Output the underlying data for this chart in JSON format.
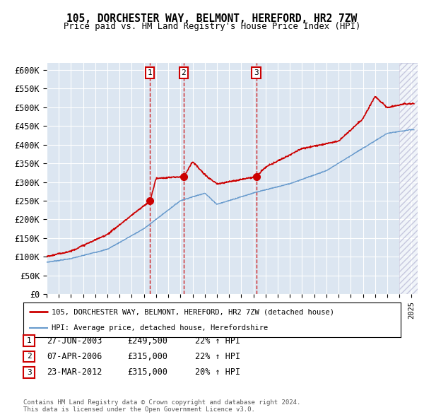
{
  "title1": "105, DORCHESTER WAY, BELMONT, HEREFORD, HR2 7ZW",
  "title2": "Price paid vs. HM Land Registry's House Price Index (HPI)",
  "plot_bg_color": "#dce6f1",
  "red_line_color": "#cc0000",
  "blue_line_color": "#6699cc",
  "grid_color": "#ffffff",
  "yticks": [
    0,
    50000,
    100000,
    150000,
    200000,
    250000,
    300000,
    350000,
    400000,
    450000,
    500000,
    550000,
    600000
  ],
  "ytick_labels": [
    "£0",
    "£50K",
    "£100K",
    "£150K",
    "£200K",
    "£250K",
    "£300K",
    "£350K",
    "£400K",
    "£450K",
    "£500K",
    "£550K",
    "£600K"
  ],
  "xmin": 1995.0,
  "xmax": 2025.5,
  "ymin": 0,
  "ymax": 620000,
  "transactions": [
    {
      "num": 1,
      "date_num": 2003.49,
      "price": 249500,
      "label": "1"
    },
    {
      "num": 2,
      "date_num": 2006.27,
      "price": 315000,
      "label": "2"
    },
    {
      "num": 3,
      "date_num": 2012.23,
      "price": 315000,
      "label": "3"
    }
  ],
  "legend_entries": [
    {
      "label": "105, DORCHESTER WAY, BELMONT, HEREFORD, HR2 7ZW (detached house)",
      "color": "#cc0000",
      "lw": 2
    },
    {
      "label": "HPI: Average price, detached house, Herefordshire",
      "color": "#6699cc",
      "lw": 1.5
    }
  ],
  "table_rows": [
    {
      "num": "1",
      "date": "27-JUN-2003",
      "price": "£249,500",
      "hpi": "22% ↑ HPI"
    },
    {
      "num": "2",
      "date": "07-APR-2006",
      "price": "£315,000",
      "hpi": "22% ↑ HPI"
    },
    {
      "num": "3",
      "date": "23-MAR-2012",
      "price": "£315,000",
      "hpi": "20% ↑ HPI"
    }
  ],
  "footer": "Contains HM Land Registry data © Crown copyright and database right 2024.\nThis data is licensed under the Open Government Licence v3.0.",
  "key_years_hpi": [
    1995,
    1997,
    2000,
    2003,
    2006,
    2008,
    2009,
    2012,
    2015,
    2018,
    2021,
    2023,
    2025
  ],
  "key_vals_hpi": [
    85000,
    95000,
    120000,
    175000,
    250000,
    270000,
    240000,
    270000,
    295000,
    330000,
    390000,
    430000,
    440000
  ],
  "key_years_prop": [
    1995,
    1997,
    2000,
    2003.49,
    2004,
    2006.27,
    2007,
    2008,
    2009,
    2012.23,
    2013,
    2016,
    2019,
    2021,
    2022,
    2023,
    2024.5
  ],
  "key_vals_prop": [
    100000,
    115000,
    160000,
    249500,
    310000,
    315000,
    355000,
    320000,
    295000,
    315000,
    340000,
    390000,
    410000,
    470000,
    530000,
    500000,
    510000
  ]
}
